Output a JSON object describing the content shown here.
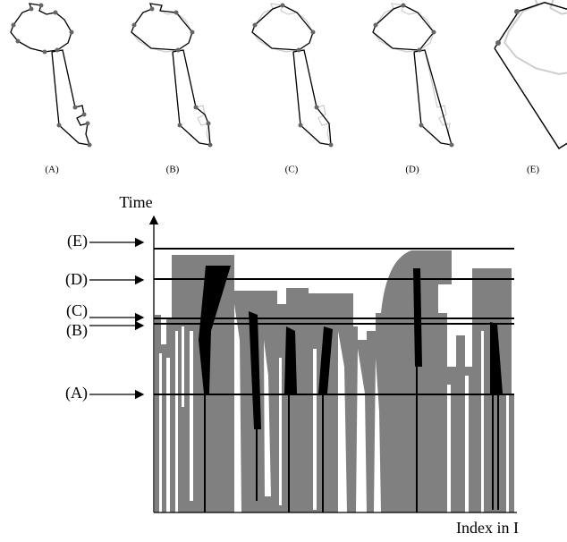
{
  "panels": [
    {
      "label": "(A)"
    },
    {
      "label": "(B)"
    },
    {
      "label": "(C)"
    },
    {
      "label": "(D)"
    },
    {
      "label": "(E)"
    }
  ],
  "plot": {
    "y_axis_label": "Time",
    "x_axis_label": "Index in I",
    "levels": [
      {
        "label": "(E)"
      },
      {
        "label": "(D)"
      },
      {
        "label": "(C)"
      },
      {
        "label": "(B)"
      },
      {
        "label": "(A)"
      }
    ]
  }
}
